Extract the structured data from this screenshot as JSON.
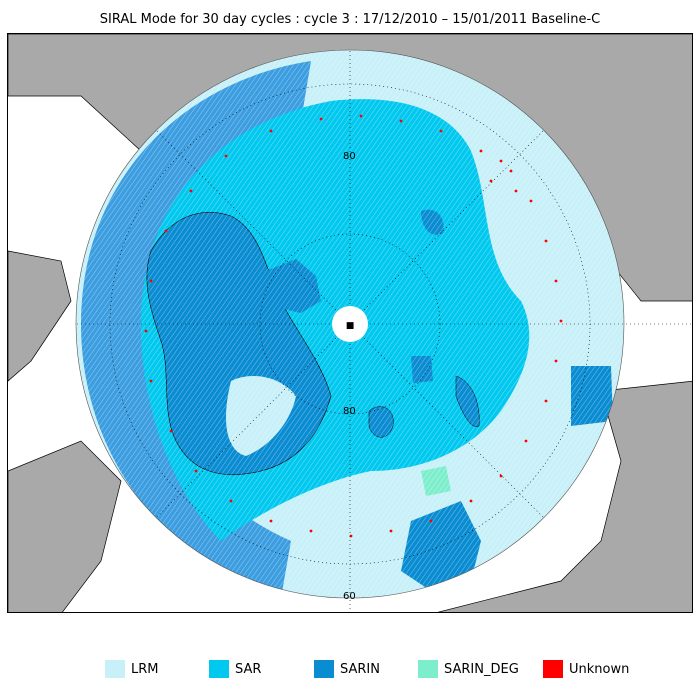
{
  "title": "SIRAL Mode for 30 day cycles : cycle 3 : 17/12/2010 – 15/01/2011 Baseline-C",
  "map": {
    "projection": "north polar stereographic",
    "latitude_labels": [
      "80",
      "80",
      "60"
    ],
    "colors": {
      "land": "#a9a9a9",
      "ocean": "#ffffff",
      "lrm": "#c8f0f8",
      "sar": "#00c8ee",
      "sarin": "#0a8cd2",
      "sarin_deg": "#7deecb",
      "unknown": "#ff0000"
    }
  },
  "legend": [
    {
      "label": "LRM",
      "color": "#c8f0f8"
    },
    {
      "label": "SAR",
      "color": "#00c8ee"
    },
    {
      "label": "SARIN",
      "color": "#0a8cd2"
    },
    {
      "label": "SARIN_DEG",
      "color": "#7deecb"
    },
    {
      "label": "Unknown",
      "color": "#ff0000"
    }
  ]
}
